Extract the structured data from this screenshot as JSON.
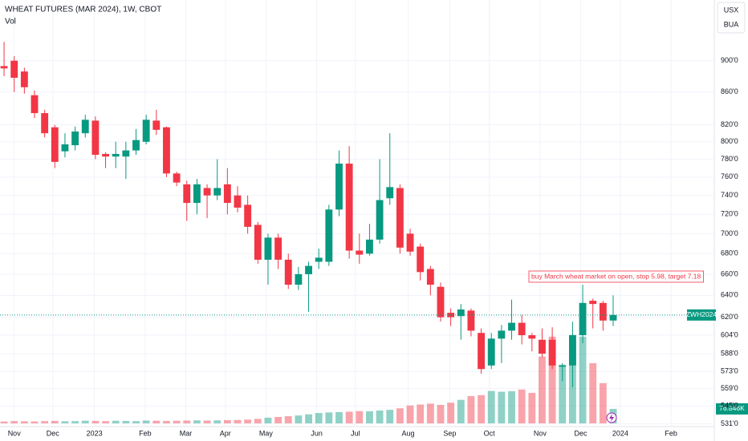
{
  "chart_data": {
    "type": "candlestick",
    "title": "WHEAT FUTURES (MAR 2024), 1W, CBOT",
    "currency": "USX",
    "unit_label": "BUA",
    "symbol": "ZWH2024",
    "annotation": "buy March wheat market on open, stop 5.98, target 7.18",
    "x": [
      0,
      1,
      2,
      3,
      4,
      5,
      6,
      7,
      8,
      9,
      10,
      11,
      12,
      13,
      14,
      15,
      16,
      17,
      18,
      19,
      20,
      21,
      22,
      23,
      24,
      25,
      26,
      27,
      28,
      29,
      30,
      31,
      32,
      33,
      34,
      35,
      36,
      37,
      38,
      39,
      40,
      41,
      42,
      43,
      44,
      45,
      46,
      47,
      48,
      49,
      50,
      51,
      52,
      53,
      54,
      55,
      56,
      57,
      58,
      59,
      60
    ],
    "xlim": [
      -0.4,
      69.96
    ],
    "xticks": [
      {
        "value": 1,
        "label": "Nov"
      },
      {
        "value": 4.8,
        "label": "Dec"
      },
      {
        "value": 8.9,
        "label": "2023"
      },
      {
        "value": 13.9,
        "label": "Feb"
      },
      {
        "value": 17.9,
        "label": "Mar"
      },
      {
        "value": 21.8,
        "label": "Apr"
      },
      {
        "value": 25.8,
        "label": "May"
      },
      {
        "value": 30.8,
        "label": "Jun"
      },
      {
        "value": 34.6,
        "label": "Jul"
      },
      {
        "value": 39.8,
        "label": "Aug"
      },
      {
        "value": 43.9,
        "label": "Sep"
      },
      {
        "value": 47.8,
        "label": "Oct"
      },
      {
        "value": 52.8,
        "label": "Nov"
      },
      {
        "value": 56.8,
        "label": "Dec"
      },
      {
        "value": 60.7,
        "label": "2024"
      },
      {
        "value": 65.7,
        "label": "Feb"
      }
    ],
    "open": [
      893,
      900,
      886,
      856,
      834,
      817,
      789,
      796,
      810,
      825,
      786,
      783,
      783,
      790,
      800,
      825,
      817,
      764,
      752,
      732,
      748,
      740,
      752,
      740,
      730,
      709,
      674,
      696,
      674,
      650,
      660,
      672,
      672,
      725,
      775,
      683,
      680,
      694,
      737,
      748,
      700,
      687,
      665,
      648,
      624,
      621,
      626,
      606,
      578,
      601,
      608,
      615,
      604,
      600,
      600,
      577,
      578,
      604,
      635,
      633,
      617
    ],
    "high": [
      925,
      906,
      891,
      862,
      838,
      820,
      810,
      818,
      832,
      830,
      788,
      800,
      800,
      815,
      832,
      838,
      818,
      766,
      756,
      758,
      752,
      780,
      770,
      750,
      740,
      712,
      700,
      700,
      680,
      667,
      672,
      685,
      730,
      790,
      795,
      700,
      710,
      780,
      810,
      752,
      705,
      690,
      668,
      652,
      628,
      632,
      628,
      610,
      606,
      613,
      636,
      622,
      606,
      610,
      611,
      580,
      616,
      650,
      637,
      635,
      640
    ],
    "low": [
      880,
      860,
      858,
      828,
      805,
      770,
      782,
      790,
      805,
      780,
      770,
      770,
      758,
      785,
      797,
      808,
      760,
      750,
      713,
      720,
      716,
      735,
      720,
      722,
      700,
      670,
      650,
      665,
      646,
      645,
      625,
      665,
      668,
      718,
      675,
      670,
      678,
      690,
      730,
      680,
      678,
      654,
      640,
      616,
      612,
      600,
      603,
      571,
      575,
      580,
      600,
      596,
      590,
      585,
      575,
      565,
      560,
      597,
      610,
      608,
      612
    ],
    "close": [
      890,
      878,
      866,
      834,
      810,
      777,
      797,
      812,
      826,
      785,
      783,
      786,
      790,
      802,
      826,
      814,
      764,
      754,
      732,
      752,
      740,
      748,
      732,
      727,
      707,
      674,
      696,
      674,
      650,
      660,
      668,
      676,
      725,
      775,
      683,
      679,
      694,
      735,
      749,
      686,
      682,
      662,
      650,
      620,
      620,
      627,
      608,
      575,
      601,
      608,
      615,
      604,
      601,
      588,
      578,
      578,
      604,
      633,
      632,
      617,
      622
    ],
    "up_color": "#089981",
    "down_color": "#f23645",
    "ylim": [
      524,
      983
    ],
    "log_scale": true,
    "grid": true,
    "yticks": [
      {
        "value": 900,
        "label": "900'0"
      },
      {
        "value": 860,
        "label": "860'0"
      },
      {
        "value": 820,
        "label": "820'0"
      },
      {
        "value": 800,
        "label": "800'0"
      },
      {
        "value": 780,
        "label": "780'0"
      },
      {
        "value": 760,
        "label": "760'0"
      },
      {
        "value": 740,
        "label": "740'0"
      },
      {
        "value": 720,
        "label": "720'0"
      },
      {
        "value": 700,
        "label": "700'0"
      },
      {
        "value": 680,
        "label": "680'0"
      },
      {
        "value": 660,
        "label": "660'0"
      },
      {
        "value": 640,
        "label": "640'0"
      },
      {
        "value": 620,
        "label": "620'0"
      },
      {
        "value": 604,
        "label": "604'0"
      },
      {
        "value": 588,
        "label": "588'0"
      },
      {
        "value": 573,
        "label": "573'0"
      },
      {
        "value": 559,
        "label": "559'0"
      },
      {
        "value": 545,
        "label": "545'0"
      },
      {
        "value": 531,
        "label": "531'0"
      }
    ],
    "series": [
      {
        "name": "Vol",
        "axis": "y2",
        "values": [
          10,
          12,
          11,
          10,
          12,
          13,
          11,
          12,
          14,
          13,
          12,
          14,
          13,
          12,
          15,
          14,
          13,
          14,
          15,
          16,
          15,
          16,
          17,
          18,
          20,
          24,
          30,
          34,
          38,
          42,
          48,
          55,
          58,
          60,
          62,
          65,
          64,
          68,
          72,
          80,
          95,
          100,
          105,
          98,
          110,
          125,
          145,
          150,
          172,
          168,
          171,
          180,
          162,
          355,
          461,
          312,
          470,
          461,
          320,
          214,
          76.846
        ],
        "value_labels": [
          null,
          null,
          null,
          null,
          null,
          null,
          null,
          null,
          null,
          null,
          null,
          null,
          null,
          null,
          null,
          null,
          null,
          null,
          null,
          null,
          null,
          null,
          null,
          null,
          null,
          null,
          null,
          null,
          null,
          null,
          null,
          null,
          null,
          null,
          null,
          null,
          null,
          null,
          null,
          null,
          null,
          null,
          null,
          null,
          null,
          null,
          null,
          null,
          null,
          null,
          null,
          null,
          null,
          null,
          null,
          null,
          null,
          null,
          null,
          null,
          "76.846K"
        ]
      }
    ],
    "y2lim": [
      0,
      2250
    ]
  }
}
